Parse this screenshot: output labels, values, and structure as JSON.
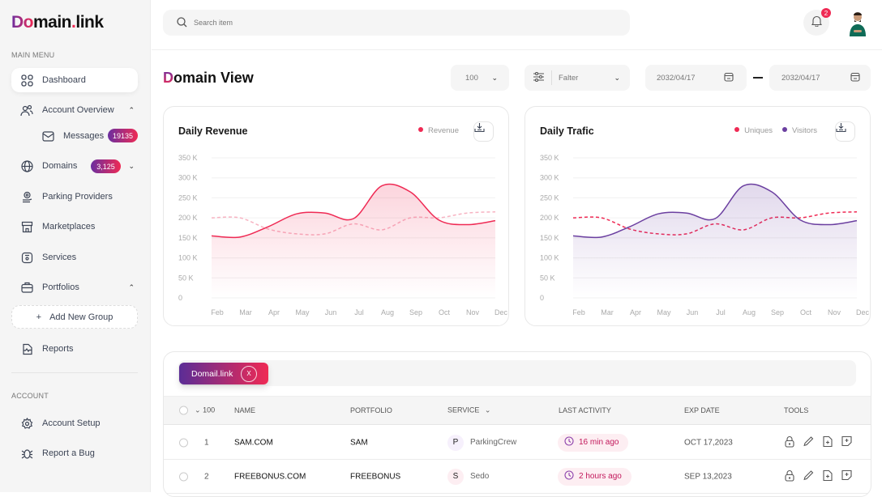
{
  "logo": {
    "prefix": "Do",
    "rest": "main",
    "dot": ".",
    "suffix": "link"
  },
  "sidebar": {
    "main_menu_label": "MAIN MENU",
    "items": [
      {
        "label": "Dashboard",
        "icon": "grid-icon",
        "active": true
      },
      {
        "label": "Account Overview",
        "icon": "users-icon",
        "expanded": true
      },
      {
        "label": "Messages",
        "icon": "mail-icon",
        "badge": "19135"
      },
      {
        "label": "Domains",
        "icon": "globe-icon",
        "badge": "3,125"
      },
      {
        "label": "Parking Providers",
        "icon": "parking-icon"
      },
      {
        "label": "Marketplaces",
        "icon": "store-icon"
      },
      {
        "label": "Services",
        "icon": "services-icon"
      },
      {
        "label": "Portfolios",
        "icon": "briefcase-icon",
        "expanded": true
      },
      {
        "label": "Reports",
        "icon": "report-icon"
      }
    ],
    "add_group_label": "Add New Group",
    "account_label": "ACCOUNT",
    "account_items": [
      {
        "label": "Account Setup",
        "icon": "gear-icon"
      },
      {
        "label": "Report a Bug",
        "icon": "bug-icon"
      }
    ]
  },
  "header": {
    "search_placeholder": "Search item",
    "notification_count": "2"
  },
  "page": {
    "title_first": "D",
    "title_rest": "omain View",
    "count_select": "100",
    "filter_label": "Falter",
    "date_from": "2032/04/17",
    "date_to": "2032/04/17"
  },
  "chart_data": [
    {
      "type": "area",
      "title": "Daily Revenue",
      "categories": [
        "Feb",
        "Mar",
        "Apr",
        "May",
        "Jun",
        "Jul",
        "Aug",
        "Sep",
        "Oct",
        "Nov",
        "Dec"
      ],
      "yticks": [
        "0",
        "50 K",
        "100 K",
        "150 K",
        "200 K",
        "250 K",
        "300 K",
        "350 K"
      ],
      "ylim": [
        0,
        350000
      ],
      "grid": true,
      "legend": "top-right",
      "series": [
        {
          "name": "Revenue",
          "color": "#ef2a54",
          "style": "solid",
          "values": [
            155000,
            152000,
            178000,
            210000,
            212000,
            198000,
            280000,
            265000,
            195000,
            183000,
            193000
          ],
          "fill": true
        },
        {
          "color": "#f7b3c2",
          "style": "dashed",
          "values": [
            200000,
            200000,
            172000,
            160000,
            160000,
            185000,
            170000,
            200000,
            200000,
            212000,
            215000
          ]
        }
      ]
    },
    {
      "type": "area",
      "title": "Daily Trafic",
      "categories": [
        "Feb",
        "Mar",
        "Apr",
        "May",
        "Jun",
        "Jul",
        "Aug",
        "Sep",
        "Oct",
        "Nov",
        "Dec"
      ],
      "yticks": [
        "0",
        "50 K",
        "100 K",
        "150 K",
        "200 K",
        "250 K",
        "300 K",
        "350 K"
      ],
      "ylim": [
        0,
        350000
      ],
      "grid": true,
      "legend": "top-right",
      "series": [
        {
          "name": "Uniques",
          "color": "#ef2a54",
          "style": "dashed",
          "values": [
            200000,
            200000,
            172000,
            160000,
            160000,
            185000,
            170000,
            200000,
            200000,
            212000,
            215000
          ]
        },
        {
          "name": "Visitors",
          "color": "#6b3fa0",
          "style": "solid",
          "values": [
            155000,
            152000,
            178000,
            210000,
            212000,
            198000,
            280000,
            265000,
            195000,
            183000,
            193000
          ],
          "fill": true
        }
      ]
    }
  ],
  "table": {
    "chip": "Domail.link",
    "chip_close": "X",
    "headers": {
      "count": "100",
      "name": "NAME",
      "portfolio": "PORTFOLIO",
      "service": "SERVICE",
      "activity": "LAST ACTIVITY",
      "exp": "EXP DATE",
      "tools": "TOOLS"
    },
    "rows": [
      {
        "num": "1",
        "name": "SAM.COM",
        "portfolio": "SAM",
        "service_initial": "P",
        "service": "ParkingCrew",
        "activity": "16 min ago",
        "exp": "OCT 17,2023"
      },
      {
        "num": "2",
        "name": "FREEBONUS.COM",
        "portfolio": "FREEBONUS",
        "service_initial": "S",
        "service": "Sedo",
        "activity": "2 hours ago",
        "exp": "SEP 13,2023"
      }
    ]
  }
}
